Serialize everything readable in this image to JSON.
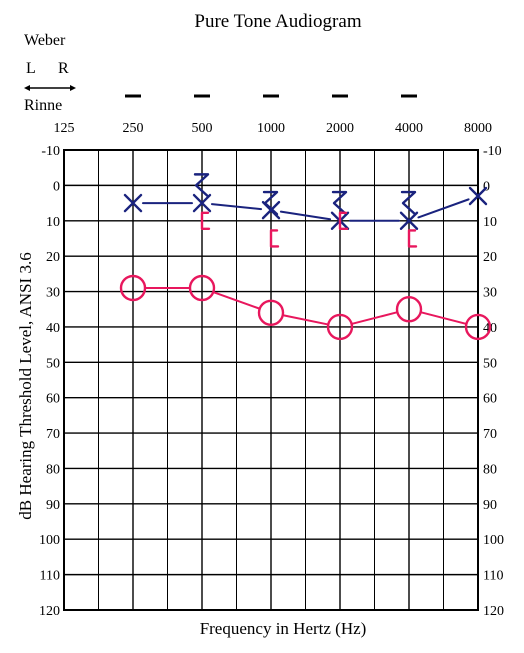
{
  "chart_data": {
    "type": "line",
    "title": "Pure Tone Audiogram",
    "xlabel": "Frequency in Hertz (Hz)",
    "ylabel": "dB Hearing Threshold Level, ANSI 3.6",
    "x_ticks": [
      "125",
      "250",
      "500",
      "1000",
      "2000",
      "4000",
      "8000"
    ],
    "y_ticks": [
      "-10",
      "0",
      "10",
      "20",
      "30",
      "40",
      "50",
      "60",
      "70",
      "80",
      "90",
      "100",
      "110",
      "120"
    ],
    "ylim": [
      -10,
      120
    ],
    "y_inverted": true,
    "grid": true,
    "weber": {
      "label": "Weber",
      "left_label": "L",
      "right_label": "R",
      "rinne_label": "Rinne",
      "midline_at": [
        "250",
        "500",
        "1000",
        "2000",
        "4000"
      ]
    },
    "series": [
      {
        "symbol": "X",
        "color": "#1a237e",
        "connected": true,
        "points": [
          {
            "x": "250",
            "y": 5
          },
          {
            "x": "500",
            "y": 5
          },
          {
            "x": "1000",
            "y": 7
          },
          {
            "x": "2000",
            "y": 10
          },
          {
            "x": "4000",
            "y": 10
          },
          {
            "x": "8000",
            "y": 3
          }
        ]
      },
      {
        "symbol": "O",
        "color": "#e8175d",
        "connected": true,
        "points": [
          {
            "x": "250",
            "y": 29
          },
          {
            "x": "500",
            "y": 29
          },
          {
            "x": "1000",
            "y": 36
          },
          {
            "x": "2000",
            "y": 40
          },
          {
            "x": "4000",
            "y": 35
          },
          {
            "x": "8000",
            "y": 40
          }
        ]
      },
      {
        "symbol": ">",
        "color": "#1a237e",
        "connected": false,
        "points": [
          {
            "x": "500",
            "y": 0
          },
          {
            "x": "1000",
            "y": 5
          },
          {
            "x": "2000",
            "y": 5
          },
          {
            "x": "4000",
            "y": 5
          }
        ]
      },
      {
        "symbol": "[",
        "color": "#e8175d",
        "connected": false,
        "points": [
          {
            "x": "500",
            "y": 10
          },
          {
            "x": "1000",
            "y": 15
          },
          {
            "x": "2000",
            "y": 10
          },
          {
            "x": "4000",
            "y": 15
          }
        ]
      }
    ]
  }
}
